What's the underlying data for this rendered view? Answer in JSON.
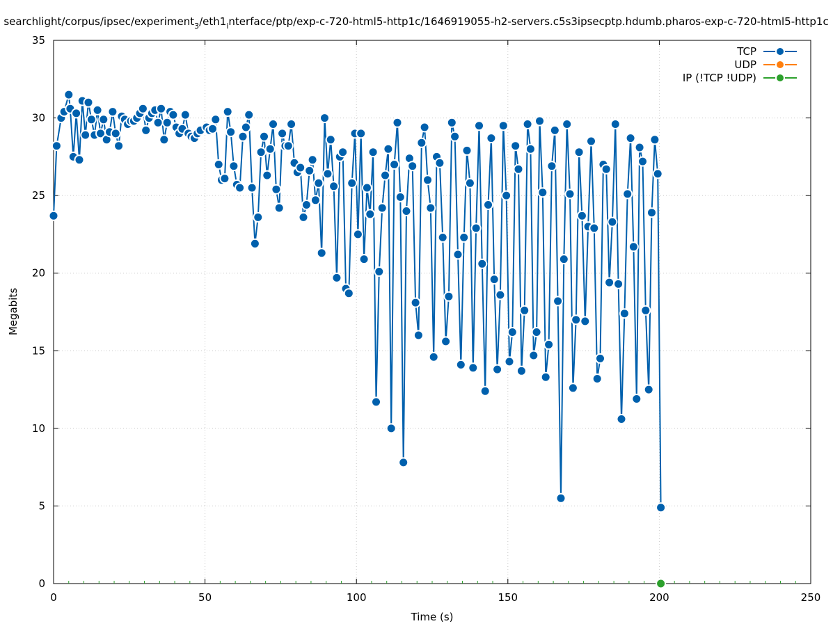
{
  "chart_data": {
    "type": "line",
    "title_parts": {
      "a": "searchlight/corpus/ipsec/experiment",
      "sub1": "3",
      "b": "/eth1",
      "sub2": "i",
      "c": "nterface/ptp/exp-c-720-html5-http1c/1646919055-h2-servers.c5s3ipsecptp.hdumb.pharos-exp-c-720-html5-http1c"
    },
    "xlabel": "Time (s)",
    "ylabel": "Megabits",
    "xlim": [
      0,
      250
    ],
    "ylim": [
      0,
      35
    ],
    "xticks": [
      0,
      50,
      100,
      150,
      200,
      250
    ],
    "yticks": [
      0,
      5,
      10,
      15,
      20,
      25,
      30,
      35
    ],
    "grid": true,
    "legend_position": "top-right",
    "series": [
      {
        "name": "TCP",
        "color": "#0060ad",
        "x": [
          0,
          1,
          2.5,
          3.5,
          5,
          5.5,
          6.5,
          7.5,
          8.5,
          9.5,
          10.5,
          11.5,
          12.5,
          13.5,
          14.5,
          15.5,
          16.5,
          17.5,
          18.5,
          19.5,
          20.5,
          21.5,
          22.5,
          23.5,
          24.5,
          25.5,
          26.5,
          27.5,
          28.5,
          29.5,
          30.5,
          31.5,
          32.5,
          33.5,
          34.5,
          35.5,
          36.5,
          37.5,
          38.5,
          39.5,
          40.5,
          41.5,
          42.5,
          43.5,
          44.5,
          45.5,
          46.5,
          47.5,
          48.5,
          50.5,
          51.5,
          52.5,
          53.5,
          54.5,
          55.5,
          56.5,
          57.5,
          58.5,
          59.5,
          60.5,
          61.5,
          62.5,
          63.5,
          64.5,
          65.5,
          66.5,
          67.5,
          68.5,
          69.5,
          70.5,
          71.5,
          72.5,
          73.5,
          74.5,
          75.5,
          76.5,
          77.5,
          78.5,
          79.5,
          80.5,
          81.5,
          82.5,
          83.5,
          84.5,
          85.5,
          86.5,
          87.5,
          88.5,
          89.5,
          90.5,
          91.5,
          92.5,
          93.5,
          94.5,
          95.5,
          96.5,
          97.5,
          98.5,
          99.5,
          100.5,
          101.5,
          102.5,
          103.5,
          104.5,
          105.5,
          106.5,
          107.5,
          108.5,
          109.5,
          110.5,
          111.5,
          112.5,
          113.5,
          114.5,
          115.5,
          116.5,
          117.5,
          118.5,
          119.5,
          120.5,
          121.5,
          122.5,
          123.5,
          124.5,
          125.5,
          126.5,
          127.5,
          128.5,
          129.5,
          130.5,
          131.5,
          132.5,
          133.5,
          134.5,
          135.5,
          136.5,
          137.5,
          138.5,
          139.5,
          140.5,
          141.5,
          142.5,
          143.5,
          144.5,
          145.5,
          146.5,
          147.5,
          148.5,
          149.5,
          150.5,
          151.5,
          152.5,
          153.5,
          154.5,
          155.5,
          156.5,
          157.5,
          158.5,
          159.5,
          160.5,
          161.5,
          162.5,
          163.5,
          164.5,
          165.5,
          166.5,
          167.5,
          168.5,
          169.5,
          170.5,
          171.5,
          172.5,
          173.5,
          174.5,
          175.5,
          176.5,
          177.5,
          178.5,
          179.5,
          180.5,
          181.5,
          182.5,
          183.5,
          184.5,
          185.5,
          186.5,
          187.5,
          188.5,
          189.5,
          190.5,
          191.5,
          192.5,
          193.5,
          194.5,
          195.5,
          196.5,
          197.5,
          198.5,
          199.5,
          200.5
        ],
        "y": [
          23.7,
          28.2,
          30.0,
          30.4,
          31.5,
          30.6,
          27.5,
          30.3,
          27.3,
          31.1,
          28.9,
          31.0,
          29.9,
          28.9,
          30.5,
          29.0,
          29.9,
          28.6,
          29.1,
          30.4,
          29.0,
          28.2,
          30.1,
          29.9,
          29.6,
          29.8,
          29.8,
          30.0,
          30.3,
          30.6,
          29.2,
          30.0,
          30.3,
          30.5,
          29.7,
          30.6,
          28.6,
          29.7,
          30.4,
          30.2,
          29.4,
          29.0,
          29.3,
          30.2,
          29.0,
          28.8,
          28.7,
          29.0,
          29.2,
          29.4,
          29.2,
          29.3,
          29.9,
          27.0,
          26.0,
          26.1,
          30.4,
          29.1,
          26.9,
          25.7,
          25.5,
          28.8,
          29.4,
          30.2,
          25.5,
          21.9,
          23.6,
          27.8,
          28.8,
          26.3,
          28.0,
          29.6,
          25.4,
          24.2,
          29.0,
          28.2,
          28.2,
          29.6,
          27.1,
          26.5,
          26.8,
          23.6,
          24.4,
          26.6,
          27.3,
          24.7,
          25.8,
          21.3,
          30.0,
          26.4,
          28.6,
          25.6,
          19.7,
          27.5,
          27.8,
          19.0,
          18.7,
          25.8,
          29.0,
          22.5,
          29.0,
          20.9,
          25.5,
          23.8,
          27.8,
          11.7,
          20.1,
          24.2,
          26.3,
          28.0,
          10.0,
          27.0,
          29.7,
          24.9,
          7.8,
          24.0,
          27.4,
          26.9,
          18.1,
          16.0,
          28.4,
          29.4,
          26.0,
          24.2,
          14.6,
          27.5,
          27.1,
          22.3,
          15.6,
          18.5,
          29.7,
          28.8,
          21.2,
          14.1,
          22.3,
          27.9,
          25.8,
          13.9,
          22.9,
          29.5,
          20.6,
          12.4,
          24.4,
          28.7,
          19.6,
          13.8,
          18.6,
          29.5,
          25.0,
          14.3,
          16.2,
          28.2,
          26.7,
          13.7,
          17.6,
          29.6,
          28.0,
          14.7,
          16.2,
          29.8,
          25.2,
          13.3,
          15.4,
          26.9,
          29.2,
          18.2,
          5.5,
          20.9,
          29.6,
          25.1,
          12.6,
          17.0,
          27.8,
          23.7,
          16.9,
          23.0,
          28.5,
          22.9,
          13.2,
          14.5,
          27.0,
          26.7,
          19.4,
          23.3,
          29.6,
          19.3,
          10.6,
          17.4,
          25.1,
          28.7,
          21.7,
          11.9,
          28.1,
          27.2,
          17.6,
          12.5,
          23.9,
          28.6,
          26.4,
          4.9
        ]
      },
      {
        "name": "UDP",
        "color": "#ff7f0e",
        "x": [],
        "y": []
      },
      {
        "name": "IP (!TCP  !UDP)",
        "color": "#2ca02c",
        "x": [
          200.5
        ],
        "y": [
          0
        ]
      }
    ]
  }
}
